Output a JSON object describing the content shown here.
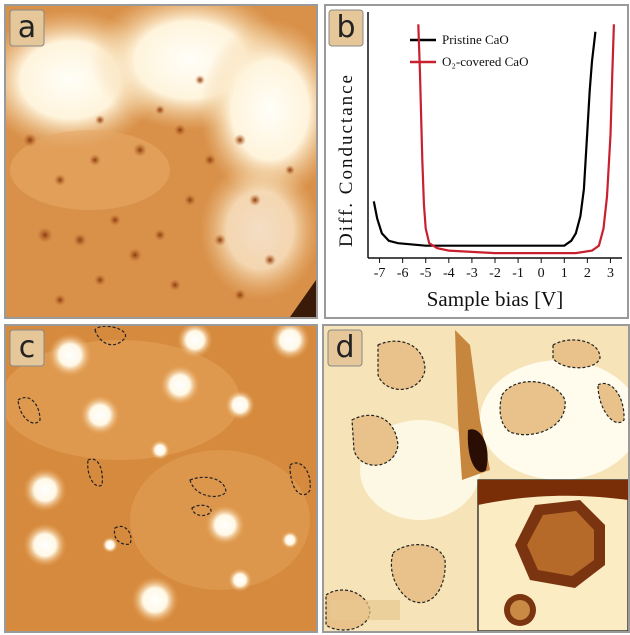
{
  "panel_labels": [
    "a",
    "c",
    "d"
  ],
  "chart_data": {
    "type": "line",
    "label": "b",
    "xlabel": "Sample bias [V]",
    "ylabel": "Diff. Conductance",
    "xlim": [
      -7.5,
      3.5
    ],
    "ylim": [
      0,
      1
    ],
    "xticks": [
      -7,
      -6,
      -5,
      -4,
      -3,
      -2,
      -1,
      0,
      1,
      2,
      3
    ],
    "series": [
      {
        "name": "Pristine CaO",
        "color": "#000000",
        "x": [
          -7.25,
          -7.1,
          -6.9,
          -6.6,
          -6.2,
          -5,
          -3,
          -1,
          0.5,
          1.0,
          1.3,
          1.5,
          1.7,
          1.85,
          2.0,
          2.1,
          2.2,
          2.3,
          2.35
        ],
        "values": [
          0.23,
          0.16,
          0.1,
          0.07,
          0.06,
          0.05,
          0.05,
          0.05,
          0.05,
          0.05,
          0.07,
          0.1,
          0.17,
          0.28,
          0.52,
          0.68,
          0.8,
          0.88,
          0.92
        ]
      },
      {
        "name": "O₂-covered CaO",
        "color": "#c8202e",
        "x": [
          -5.32,
          -5.25,
          -5.2,
          -5.15,
          -5.08,
          -5.0,
          -4.85,
          -4.5,
          -4,
          -2,
          0,
          1.5,
          2.2,
          2.5,
          2.7,
          2.85,
          3.0,
          3.08,
          3.15
        ],
        "values": [
          0.95,
          0.75,
          0.58,
          0.4,
          0.22,
          0.12,
          0.06,
          0.04,
          0.03,
          0.02,
          0.02,
          0.02,
          0.03,
          0.05,
          0.12,
          0.25,
          0.5,
          0.75,
          0.95
        ]
      }
    ]
  }
}
